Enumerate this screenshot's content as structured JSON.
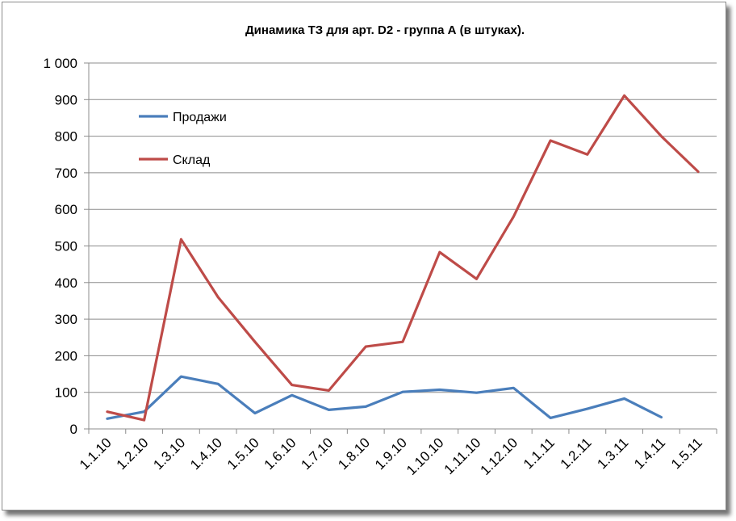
{
  "chart_data": {
    "type": "line",
    "title": "Динамика ТЗ для  арт. D2 - группа А (в штуках).",
    "categories": [
      "1.1.10",
      "1.2.10",
      "1.3.10",
      "1.4.10",
      "1.5.10",
      "1.6.10",
      "1.7.10",
      "1.8.10",
      "1.9.10",
      "1.10.10",
      "1.11.10",
      "1.12.10",
      "1.1.11",
      "1.2.11",
      "1.3.11",
      "1.4.11",
      "1.5.11"
    ],
    "ylim": [
      0,
      1000
    ],
    "yticks": [
      0,
      100,
      200,
      300,
      400,
      500,
      600,
      700,
      800,
      900,
      1000
    ],
    "ytick_labels": [
      "0",
      "100",
      "200",
      "300",
      "400",
      "500",
      "600",
      "700",
      "800",
      "900",
      "1 000"
    ],
    "grid": true,
    "legend_position": "top-left",
    "series": [
      {
        "name": "Продажи",
        "color": "#4a7ebb",
        "values": [
          28,
          47,
          143,
          123,
          43,
          92,
          52,
          61,
          101,
          107,
          99,
          112,
          30,
          55,
          83,
          32,
          null
        ]
      },
      {
        "name": "Склад",
        "color": "#be4b48",
        "values": [
          47,
          24,
          518,
          360,
          238,
          120,
          105,
          225,
          238,
          483,
          410,
          580,
          788,
          750,
          911,
          800,
          703
        ]
      }
    ]
  }
}
